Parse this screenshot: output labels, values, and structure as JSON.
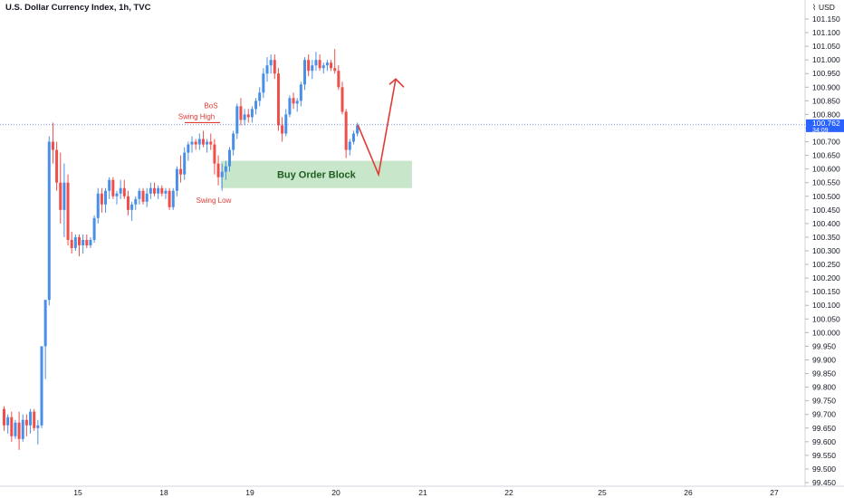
{
  "header": {
    "title": "U.S. Dollar Currency Index, 1h, TVC"
  },
  "price_scale": {
    "currency": "USD",
    "tick_labels": [
      "101.150",
      "101.100",
      "101.050",
      "101.000",
      "100.950",
      "100.900",
      "100.850",
      "100.800",
      "100.750",
      "100.700",
      "100.650",
      "100.600",
      "100.550",
      "100.500",
      "100.450",
      "100.400",
      "100.350",
      "100.300",
      "100.250",
      "100.200",
      "100.150",
      "100.100",
      "100.050",
      "100.000",
      "99.950",
      "99.900",
      "99.850",
      "99.800",
      "99.750",
      "99.700",
      "99.650",
      "99.600",
      "99.550",
      "99.500",
      "99.450"
    ],
    "last_price": "100.762",
    "countdown": "34:09",
    "last_price_color": "#2962ff"
  },
  "time_axis": {
    "labels": [
      "15",
      "18",
      "19",
      "20",
      "21",
      "22",
      "25",
      "26",
      "27"
    ]
  },
  "annotations": {
    "bos": "BoS",
    "swing_high": "Swing High",
    "swing_low": "Swing Low",
    "order_block": "Buy Order Block"
  },
  "colors": {
    "up": "#4a8fe7",
    "down": "#ef4f4a",
    "annotation": "#e03b35",
    "order_block_fill": "#c8e6c9",
    "order_block_text": "#1b5e20",
    "last_price_line": "#2962ff"
  },
  "chart_data": {
    "type": "candlestick",
    "title": "U.S. Dollar Currency Index, 1h, TVC",
    "y_unit": "USD",
    "ylim": [
      99.45,
      101.2
    ],
    "x_categories": [
      "15",
      "18",
      "19",
      "20",
      "21",
      "22",
      "25",
      "26",
      "27"
    ],
    "last_price": 100.762,
    "candles_approx": [
      {
        "o": 99.72,
        "h": 99.73,
        "l": 99.64,
        "c": 99.66
      },
      {
        "o": 99.66,
        "h": 99.7,
        "l": 99.63,
        "c": 99.69
      },
      {
        "o": 99.69,
        "h": 99.71,
        "l": 99.6,
        "c": 99.62
      },
      {
        "o": 99.62,
        "h": 99.68,
        "l": 99.61,
        "c": 99.67
      },
      {
        "o": 99.67,
        "h": 99.71,
        "l": 99.57,
        "c": 99.61
      },
      {
        "o": 99.61,
        "h": 99.7,
        "l": 99.6,
        "c": 99.68
      },
      {
        "o": 99.68,
        "h": 99.7,
        "l": 99.62,
        "c": 99.66
      },
      {
        "o": 99.66,
        "h": 99.72,
        "l": 99.63,
        "c": 99.71
      },
      {
        "o": 99.71,
        "h": 99.72,
        "l": 99.64,
        "c": 99.65
      },
      {
        "o": 99.65,
        "h": 99.68,
        "l": 99.59,
        "c": 99.66
      },
      {
        "o": 99.66,
        "h": 99.95,
        "l": 99.65,
        "c": 99.95
      },
      {
        "o": 99.95,
        "h": 100.12,
        "l": 99.83,
        "c": 100.12
      },
      {
        "o": 100.12,
        "h": 100.72,
        "l": 100.1,
        "c": 100.7
      },
      {
        "o": 100.7,
        "h": 100.77,
        "l": 100.62,
        "c": 100.67
      },
      {
        "o": 100.67,
        "h": 100.7,
        "l": 100.52,
        "c": 100.55
      },
      {
        "o": 100.55,
        "h": 100.66,
        "l": 100.4,
        "c": 100.45
      },
      {
        "o": 100.45,
        "h": 100.62,
        "l": 100.35,
        "c": 100.55
      },
      {
        "o": 100.55,
        "h": 100.58,
        "l": 100.32,
        "c": 100.34
      },
      {
        "o": 100.34,
        "h": 100.37,
        "l": 100.29,
        "c": 100.31
      },
      {
        "o": 100.31,
        "h": 100.36,
        "l": 100.3,
        "c": 100.35
      },
      {
        "o": 100.35,
        "h": 100.36,
        "l": 100.28,
        "c": 100.32
      },
      {
        "o": 100.32,
        "h": 100.36,
        "l": 100.29,
        "c": 100.34
      },
      {
        "o": 100.34,
        "h": 100.36,
        "l": 100.31,
        "c": 100.32
      },
      {
        "o": 100.32,
        "h": 100.35,
        "l": 100.31,
        "c": 100.34
      },
      {
        "o": 100.34,
        "h": 100.43,
        "l": 100.33,
        "c": 100.42
      },
      {
        "o": 100.42,
        "h": 100.53,
        "l": 100.4,
        "c": 100.51
      },
      {
        "o": 100.51,
        "h": 100.53,
        "l": 100.44,
        "c": 100.47
      },
      {
        "o": 100.47,
        "h": 100.53,
        "l": 100.44,
        "c": 100.52
      },
      {
        "o": 100.52,
        "h": 100.57,
        "l": 100.49,
        "c": 100.56
      },
      {
        "o": 100.56,
        "h": 100.57,
        "l": 100.49,
        "c": 100.5
      },
      {
        "o": 100.5,
        "h": 100.52,
        "l": 100.47,
        "c": 100.51
      },
      {
        "o": 100.51,
        "h": 100.56,
        "l": 100.49,
        "c": 100.53
      },
      {
        "o": 100.53,
        "h": 100.56,
        "l": 100.49,
        "c": 100.5
      },
      {
        "o": 100.5,
        "h": 100.52,
        "l": 100.43,
        "c": 100.45
      },
      {
        "o": 100.45,
        "h": 100.48,
        "l": 100.41,
        "c": 100.47
      },
      {
        "o": 100.47,
        "h": 100.5,
        "l": 100.45,
        "c": 100.49
      },
      {
        "o": 100.49,
        "h": 100.53,
        "l": 100.47,
        "c": 100.52
      },
      {
        "o": 100.52,
        "h": 100.53,
        "l": 100.47,
        "c": 100.48
      },
      {
        "o": 100.48,
        "h": 100.53,
        "l": 100.46,
        "c": 100.51
      },
      {
        "o": 100.51,
        "h": 100.55,
        "l": 100.49,
        "c": 100.53
      },
      {
        "o": 100.53,
        "h": 100.55,
        "l": 100.5,
        "c": 100.51
      },
      {
        "o": 100.51,
        "h": 100.54,
        "l": 100.49,
        "c": 100.53
      },
      {
        "o": 100.53,
        "h": 100.54,
        "l": 100.5,
        "c": 100.51
      },
      {
        "o": 100.51,
        "h": 100.53,
        "l": 100.49,
        "c": 100.52
      },
      {
        "o": 100.52,
        "h": 100.53,
        "l": 100.45,
        "c": 100.46
      },
      {
        "o": 100.46,
        "h": 100.53,
        "l": 100.45,
        "c": 100.52
      },
      {
        "o": 100.52,
        "h": 100.61,
        "l": 100.5,
        "c": 100.6
      },
      {
        "o": 100.6,
        "h": 100.65,
        "l": 100.55,
        "c": 100.58
      },
      {
        "o": 100.58,
        "h": 100.68,
        "l": 100.56,
        "c": 100.66
      },
      {
        "o": 100.66,
        "h": 100.7,
        "l": 100.63,
        "c": 100.69
      },
      {
        "o": 100.69,
        "h": 100.72,
        "l": 100.66,
        "c": 100.7
      },
      {
        "o": 100.7,
        "h": 100.71,
        "l": 100.67,
        "c": 100.69
      },
      {
        "o": 100.69,
        "h": 100.73,
        "l": 100.67,
        "c": 100.71
      },
      {
        "o": 100.71,
        "h": 100.74,
        "l": 100.68,
        "c": 100.69
      },
      {
        "o": 100.69,
        "h": 100.71,
        "l": 100.66,
        "c": 100.7
      },
      {
        "o": 100.7,
        "h": 100.73,
        "l": 100.67,
        "c": 100.69
      },
      {
        "o": 100.69,
        "h": 100.71,
        "l": 100.58,
        "c": 100.62
      },
      {
        "o": 100.62,
        "h": 100.65,
        "l": 100.54,
        "c": 100.57
      },
      {
        "o": 100.57,
        "h": 100.62,
        "l": 100.52,
        "c": 100.59
      },
      {
        "o": 100.59,
        "h": 100.63,
        "l": 100.56,
        "c": 100.61
      },
      {
        "o": 100.61,
        "h": 100.68,
        "l": 100.59,
        "c": 100.67
      },
      {
        "o": 100.67,
        "h": 100.74,
        "l": 100.65,
        "c": 100.73
      },
      {
        "o": 100.73,
        "h": 100.84,
        "l": 100.71,
        "c": 100.83
      },
      {
        "o": 100.83,
        "h": 100.86,
        "l": 100.76,
        "c": 100.78
      },
      {
        "o": 100.78,
        "h": 100.82,
        "l": 100.76,
        "c": 100.8
      },
      {
        "o": 100.8,
        "h": 100.82,
        "l": 100.77,
        "c": 100.79
      },
      {
        "o": 100.79,
        "h": 100.83,
        "l": 100.77,
        "c": 100.82
      },
      {
        "o": 100.82,
        "h": 100.86,
        "l": 100.8,
        "c": 100.85
      },
      {
        "o": 100.85,
        "h": 100.9,
        "l": 100.83,
        "c": 100.88
      },
      {
        "o": 100.88,
        "h": 100.97,
        "l": 100.86,
        "c": 100.95
      },
      {
        "o": 100.95,
        "h": 101.01,
        "l": 100.92,
        "c": 100.98
      },
      {
        "o": 100.98,
        "h": 101.02,
        "l": 100.95,
        "c": 101.0
      },
      {
        "o": 101.0,
        "h": 101.02,
        "l": 100.93,
        "c": 100.95
      },
      {
        "o": 100.95,
        "h": 100.97,
        "l": 100.74,
        "c": 100.76
      },
      {
        "o": 100.76,
        "h": 100.79,
        "l": 100.7,
        "c": 100.73
      },
      {
        "o": 100.73,
        "h": 100.82,
        "l": 100.72,
        "c": 100.8
      },
      {
        "o": 100.8,
        "h": 100.87,
        "l": 100.79,
        "c": 100.86
      },
      {
        "o": 100.86,
        "h": 100.88,
        "l": 100.82,
        "c": 100.84
      },
      {
        "o": 100.84,
        "h": 100.86,
        "l": 100.81,
        "c": 100.85
      },
      {
        "o": 100.85,
        "h": 100.92,
        "l": 100.83,
        "c": 100.91
      },
      {
        "o": 100.91,
        "h": 101.01,
        "l": 100.89,
        "c": 101.0
      },
      {
        "o": 101.0,
        "h": 101.02,
        "l": 100.94,
        "c": 100.96
      },
      {
        "o": 100.96,
        "h": 101.0,
        "l": 100.93,
        "c": 100.98
      },
      {
        "o": 100.98,
        "h": 101.03,
        "l": 100.96,
        "c": 101.0
      },
      {
        "o": 101.0,
        "h": 101.02,
        "l": 100.96,
        "c": 100.97
      },
      {
        "o": 100.97,
        "h": 100.99,
        "l": 100.95,
        "c": 100.98
      },
      {
        "o": 100.98,
        "h": 101.0,
        "l": 100.96,
        "c": 100.99
      },
      {
        "o": 100.99,
        "h": 101.0,
        "l": 100.96,
        "c": 100.97
      },
      {
        "o": 100.97,
        "h": 101.04,
        "l": 100.95,
        "c": 100.96
      },
      {
        "o": 100.96,
        "h": 100.98,
        "l": 100.89,
        "c": 100.9
      },
      {
        "o": 100.9,
        "h": 100.92,
        "l": 100.8,
        "c": 100.81
      },
      {
        "o": 100.81,
        "h": 100.82,
        "l": 100.64,
        "c": 100.67
      },
      {
        "o": 100.67,
        "h": 100.71,
        "l": 100.65,
        "c": 100.7
      },
      {
        "o": 100.7,
        "h": 100.74,
        "l": 100.69,
        "c": 100.73
      },
      {
        "o": 100.73,
        "h": 100.77,
        "l": 100.72,
        "c": 100.76
      }
    ],
    "order_block": {
      "label": "Buy Order Block",
      "x_start_index": 58,
      "x_end_index": "beyond last candle",
      "y_high": 100.63,
      "y_low": 100.53
    },
    "projection_path": [
      100.762,
      100.58,
      100.93
    ]
  }
}
